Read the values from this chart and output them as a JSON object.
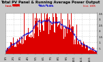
{
  "title": "Total PV Panel & Running Average Power Output",
  "bg_color": "#c8c8c8",
  "plot_bg": "#ffffff",
  "bar_color": "#dd0000",
  "avg_color": "#0000cc",
  "tick_color": "#000000",
  "grid_color": "#aaaaaa",
  "spine_color": "#888888",
  "legend_pv_label": "Inst. kWh",
  "legend_pv_color": "#dd0000",
  "legend_avg_label": "Ave. kWh",
  "legend_avg_color": "#0000cc",
  "num_points": 365,
  "peak_day": 172,
  "peak_value": 3.5,
  "ylim_max": 3.5,
  "y_ticks": [
    0.5,
    1.0,
    1.5,
    2.0,
    2.5,
    3.0,
    3.5
  ],
  "y_tick_labels": [
    ".5",
    "1.",
    "1.5",
    "2.",
    "2.5",
    "3.",
    "3.5"
  ],
  "title_fontsize": 3.8,
  "tick_fontsize": 2.8,
  "legend_fontsize": 2.8
}
